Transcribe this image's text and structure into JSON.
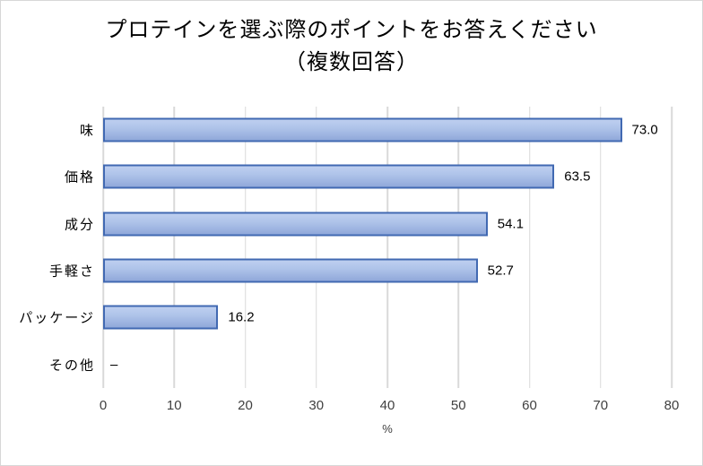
{
  "chart_data": {
    "type": "bar",
    "orientation": "horizontal",
    "title_lines": [
      "プロテインを選ぶ際のポイントをお答えください",
      "（複数回答）"
    ],
    "categories": [
      "味",
      "価格",
      "成分",
      "手軽さ",
      "パッケージ",
      "その他"
    ],
    "values": [
      73.0,
      63.5,
      54.1,
      52.7,
      16.2,
      null
    ],
    "value_labels": [
      "73.0",
      "63.5",
      "54.1",
      "52.7",
      "16.2",
      "–"
    ],
    "xlabel": "%",
    "xlim": [
      0,
      80
    ],
    "xticks": [
      0,
      10,
      20,
      30,
      40,
      50,
      60,
      70,
      80
    ],
    "grid": true,
    "legend": false,
    "colors": {
      "bar_border": "#4169B2",
      "bar_fill_top": "#BECFF0",
      "bar_fill_mid": "#AEC3E9",
      "bar_fill_bottom": "#90A8DA",
      "gridline": "#D9D9D9",
      "title_text": "#000000",
      "tick_text": "#404040"
    }
  }
}
